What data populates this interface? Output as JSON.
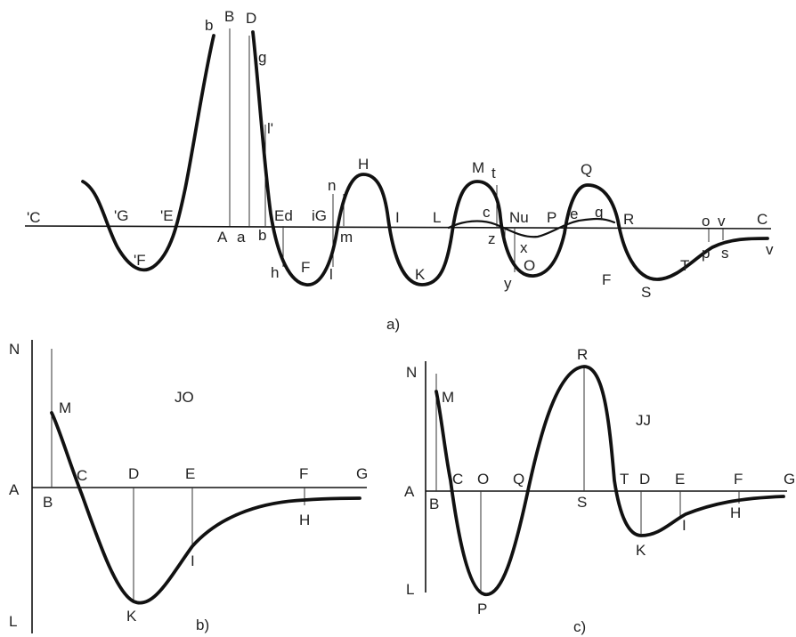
{
  "panel_a": {
    "caption": "a)",
    "labels": {
      "C_left": "'C",
      "G_left": "'G",
      "E_left": "'E",
      "F_left": "'F",
      "b_top": "b",
      "B": "B",
      "D": "D",
      "g": "g",
      "l_prime": "l'",
      "A": "A",
      "a": "a",
      "b_low": "b",
      "h": "h",
      "Ed": "Ed",
      "F1": "F",
      "l": "l",
      "iG": "iG",
      "m": "m",
      "n": "n",
      "H": "H",
      "I": "I",
      "K": "K",
      "L": "L",
      "M": "M",
      "t": "t",
      "c": "c",
      "z": "z",
      "Nu": "Nu",
      "x": "x",
      "O": "O",
      "y": "y",
      "P": "P",
      "e": "e",
      "q": "q",
      "Q": "Q",
      "R": "R",
      "F2": "F",
      "S": "S",
      "T": "T",
      "o": "o",
      "v_top": "v",
      "C_right": "C",
      "p": "p",
      "s": "s",
      "v_right": "v"
    }
  },
  "panel_b": {
    "caption": "b)",
    "title": "JO",
    "labels": {
      "N": "N",
      "A": "A",
      "L": "L",
      "M": "M",
      "B": "B",
      "C": "C",
      "D": "D",
      "E": "E",
      "F": "F",
      "G": "G",
      "H": "H",
      "I": "I",
      "K": "K"
    }
  },
  "panel_c": {
    "caption": "c)",
    "title": "JJ",
    "labels": {
      "N": "N",
      "A": "A",
      "L": "L",
      "M": "M",
      "B": "B",
      "C": "C",
      "O": "O",
      "Q": "Q",
      "R": "R",
      "S": "S",
      "P": "P",
      "T": "T",
      "D": "D",
      "E": "E",
      "F": "F",
      "G": "G",
      "H": "H",
      "I": "I",
      "K": "K"
    }
  }
}
